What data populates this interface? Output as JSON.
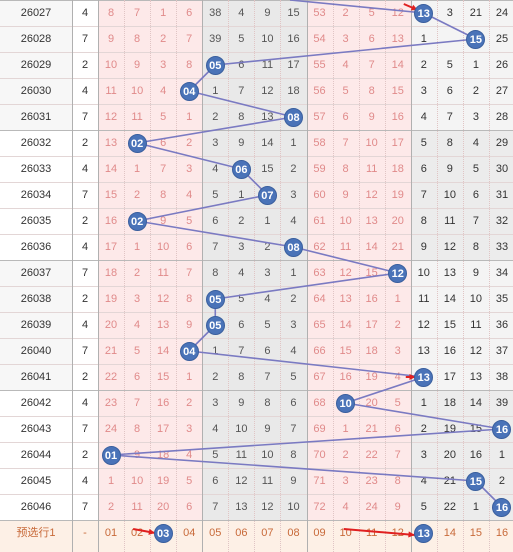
{
  "colors": {
    "ball_fill": "#4a73b8",
    "trend_line": "#7a7ac2",
    "miss_text_pink": "#e08a8a",
    "band_pink": "#fde9e9",
    "band_gray": "#e9e9e9",
    "band_white": "#ffffff",
    "predict_row_bg": "#fdf0e6",
    "arrow_red": "#e02020"
  },
  "rows": [
    {
      "issue": "26027",
      "mod": "4",
      "a": [
        "8",
        "7",
        "1",
        "6"
      ],
      "b": [
        "38",
        "4",
        "9",
        "15"
      ],
      "c": [
        "53",
        "2",
        "5",
        "12"
      ],
      "d": [
        "13",
        "3",
        "21",
        "24"
      ],
      "ball": 13
    },
    {
      "issue": "26028",
      "mod": "7",
      "a": [
        "9",
        "8",
        "2",
        "7"
      ],
      "b": [
        "39",
        "5",
        "10",
        "16"
      ],
      "c": [
        "54",
        "3",
        "6",
        "13"
      ],
      "d": [
        "1",
        "",
        "15",
        "25"
      ],
      "ball": 15
    },
    {
      "issue": "26029",
      "mod": "2",
      "a": [
        "10",
        "9",
        "3",
        "8"
      ],
      "b": [
        "05",
        "6",
        "11",
        "17"
      ],
      "c": [
        "55",
        "4",
        "7",
        "14"
      ],
      "d": [
        "2",
        "5",
        "1",
        "26"
      ],
      "ball": 5
    },
    {
      "issue": "26030",
      "mod": "4",
      "a": [
        "11",
        "10",
        "4",
        "04"
      ],
      "b": [
        "1",
        "7",
        "12",
        "18"
      ],
      "c": [
        "56",
        "5",
        "8",
        "15"
      ],
      "d": [
        "3",
        "6",
        "2",
        "27"
      ],
      "ball": 4
    },
    {
      "issue": "26031",
      "mod": "7",
      "a": [
        "12",
        "11",
        "5",
        "1"
      ],
      "b": [
        "2",
        "8",
        "13",
        "08"
      ],
      "c": [
        "57",
        "6",
        "9",
        "16"
      ],
      "d": [
        "4",
        "7",
        "3",
        "28"
      ],
      "ball": 8
    },
    {
      "issue": "26032",
      "mod": "2",
      "a": [
        "13",
        "02",
        "6",
        "2"
      ],
      "b": [
        "3",
        "9",
        "14",
        "1"
      ],
      "c": [
        "58",
        "7",
        "10",
        "17"
      ],
      "d": [
        "5",
        "8",
        "4",
        "29"
      ],
      "ball": 2
    },
    {
      "issue": "26033",
      "mod": "4",
      "a": [
        "14",
        "1",
        "7",
        "3"
      ],
      "b": [
        "4",
        "06",
        "15",
        "2"
      ],
      "c": [
        "59",
        "8",
        "11",
        "18"
      ],
      "d": [
        "6",
        "9",
        "5",
        "30"
      ],
      "ball": 6
    },
    {
      "issue": "26034",
      "mod": "7",
      "a": [
        "15",
        "2",
        "8",
        "4"
      ],
      "b": [
        "5",
        "1",
        "07",
        "3"
      ],
      "c": [
        "60",
        "9",
        "12",
        "19"
      ],
      "d": [
        "7",
        "10",
        "6",
        "31"
      ],
      "ball": 7
    },
    {
      "issue": "26035",
      "mod": "2",
      "a": [
        "16",
        "02",
        "9",
        "5"
      ],
      "b": [
        "6",
        "2",
        "1",
        "4"
      ],
      "c": [
        "61",
        "10",
        "13",
        "20"
      ],
      "d": [
        "8",
        "11",
        "7",
        "32"
      ],
      "ball": 2
    },
    {
      "issue": "26036",
      "mod": "4",
      "a": [
        "17",
        "1",
        "10",
        "6"
      ],
      "b": [
        "7",
        "3",
        "2",
        "08"
      ],
      "c": [
        "62",
        "11",
        "14",
        "21"
      ],
      "d": [
        "9",
        "12",
        "8",
        "33"
      ],
      "ball": 8
    },
    {
      "issue": "26037",
      "mod": "7",
      "a": [
        "18",
        "2",
        "11",
        "7"
      ],
      "b": [
        "8",
        "4",
        "3",
        "1"
      ],
      "c": [
        "63",
        "12",
        "15",
        "12"
      ],
      "d": [
        "10",
        "13",
        "9",
        "34"
      ],
      "ball": 12
    },
    {
      "issue": "26038",
      "mod": "2",
      "a": [
        "19",
        "3",
        "12",
        "8"
      ],
      "b": [
        "05",
        "5",
        "4",
        "2"
      ],
      "c": [
        "64",
        "13",
        "16",
        "1"
      ],
      "d": [
        "11",
        "14",
        "10",
        "35"
      ],
      "ball": 5
    },
    {
      "issue": "26039",
      "mod": "4",
      "a": [
        "20",
        "4",
        "13",
        "9"
      ],
      "b": [
        "05",
        "6",
        "5",
        "3"
      ],
      "c": [
        "65",
        "14",
        "17",
        "2"
      ],
      "d": [
        "12",
        "15",
        "11",
        "36"
      ],
      "ball": 5
    },
    {
      "issue": "26040",
      "mod": "7",
      "a": [
        "21",
        "5",
        "14",
        "04"
      ],
      "b": [
        "1",
        "7",
        "6",
        "4"
      ],
      "c": [
        "66",
        "15",
        "18",
        "3"
      ],
      "d": [
        "13",
        "16",
        "12",
        "37"
      ],
      "ball": 4
    },
    {
      "issue": "26041",
      "mod": "2",
      "a": [
        "22",
        "6",
        "15",
        "1"
      ],
      "b": [
        "2",
        "8",
        "7",
        "5"
      ],
      "c": [
        "67",
        "16",
        "19",
        "4"
      ],
      "d": [
        "13",
        "17",
        "13",
        "38"
      ],
      "ball": 13
    },
    {
      "issue": "26042",
      "mod": "4",
      "a": [
        "23",
        "7",
        "16",
        "2"
      ],
      "b": [
        "3",
        "9",
        "8",
        "6"
      ],
      "c": [
        "68",
        "10",
        "20",
        "5"
      ],
      "d": [
        "1",
        "18",
        "14",
        "39"
      ],
      "ball": 10
    },
    {
      "issue": "26043",
      "mod": "7",
      "a": [
        "24",
        "8",
        "17",
        "3"
      ],
      "b": [
        "4",
        "10",
        "9",
        "7"
      ],
      "c": [
        "69",
        "1",
        "21",
        "6"
      ],
      "d": [
        "2",
        "19",
        "15",
        "16"
      ],
      "ball": 16
    },
    {
      "issue": "26044",
      "mod": "2",
      "a": [
        "01",
        "9",
        "18",
        "4"
      ],
      "b": [
        "5",
        "11",
        "10",
        "8"
      ],
      "c": [
        "70",
        "2",
        "22",
        "7"
      ],
      "d": [
        "3",
        "20",
        "16",
        "1"
      ],
      "ball": 1
    },
    {
      "issue": "26045",
      "mod": "4",
      "a": [
        "1",
        "10",
        "19",
        "5"
      ],
      "b": [
        "6",
        "12",
        "11",
        "9"
      ],
      "c": [
        "71",
        "3",
        "23",
        "8"
      ],
      "d": [
        "4",
        "21",
        "15",
        "2"
      ],
      "ball": 15
    },
    {
      "issue": "26046",
      "mod": "7",
      "a": [
        "2",
        "11",
        "20",
        "6"
      ],
      "b": [
        "7",
        "13",
        "12",
        "10"
      ],
      "c": [
        "72",
        "4",
        "24",
        "9"
      ],
      "d": [
        "5",
        "22",
        "1",
        "16"
      ],
      "ball": 16
    }
  ],
  "predict": {
    "label": "预选行1",
    "mod": "-",
    "cells": [
      "01",
      "02",
      "03",
      "04",
      "05",
      "06",
      "07",
      "08",
      "09",
      "10",
      "11",
      "12",
      "13",
      "14",
      "15",
      "16"
    ],
    "balls": [
      3,
      13
    ]
  }
}
